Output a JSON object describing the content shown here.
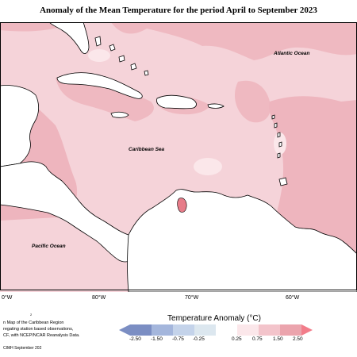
{
  "title": "Anomaly of the Mean Temperature for the period April to September 2023",
  "ocean_labels": {
    "atlantic": "Atlantic Ocean",
    "caribbean": "Caribbean Sea",
    "pacific": "Pacific Ocean"
  },
  "longitude_ticks": [
    "0°W",
    "80°W",
    "70°W",
    "60°W"
  ],
  "notes": {
    "line1": "n Map of the Caribbean Region",
    "line2": "regating station based observations,",
    "line3": "CF, with NCEP/NCAR Reanalysis Data.",
    "mark": "2"
  },
  "footer": "CIMH September 202",
  "legend": {
    "title": "Temperature Anomaly (°C)",
    "labels": [
      "-2.50",
      "-1.50",
      "-0.75",
      "-0.25",
      "0.25",
      "0.75",
      "1.50",
      "2.50"
    ],
    "colors": [
      "#7b8ec3",
      "#a4b6dc",
      "#c4d3ea",
      "#dce7ef",
      "#fbe7ea",
      "#f3c4cb",
      "#eba4ad",
      "#f27d8a"
    ]
  },
  "colors": {
    "anomaly_low": "#f7d7dd",
    "anomaly_mid": "#efb8c0",
    "anomaly_high": "#e99aa5",
    "anomaly_peak": "#e77c89",
    "land": "#ffffff"
  }
}
